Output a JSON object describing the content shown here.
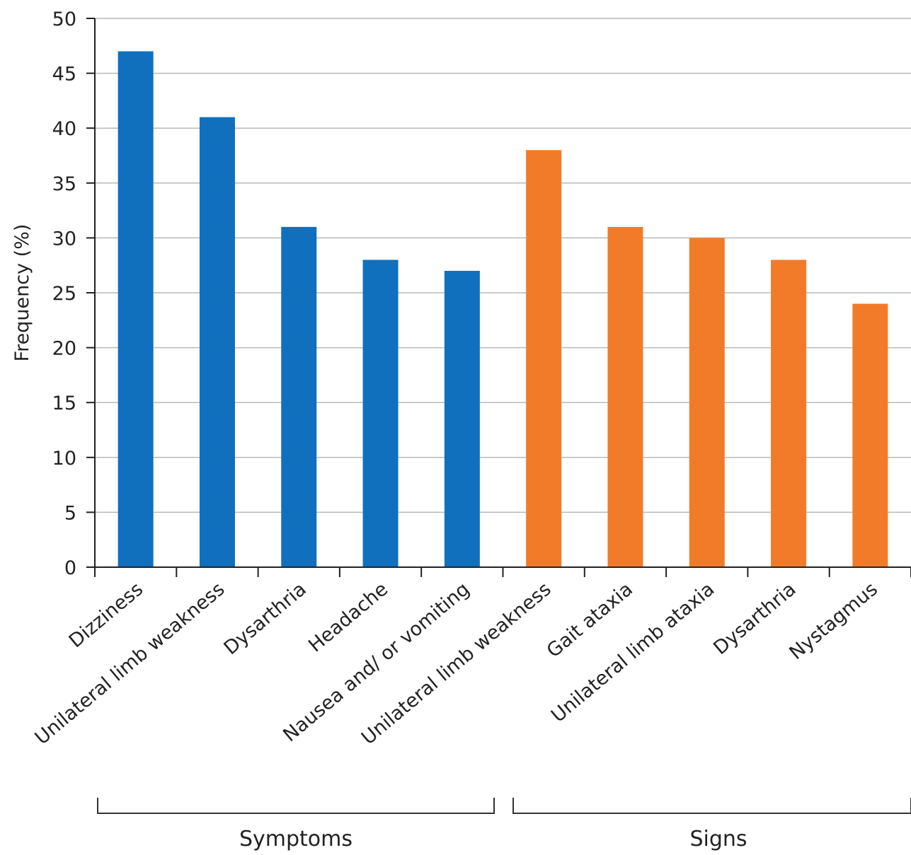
{
  "chart_data": {
    "type": "bar",
    "ylabel": "Frequency (%)",
    "ylim": [
      0,
      50
    ],
    "yticks": [
      0,
      5,
      10,
      15,
      20,
      25,
      30,
      35,
      40,
      45,
      50
    ],
    "grid": true,
    "bars": [
      {
        "category": "Dizziness",
        "value": 47,
        "group": "Symptoms"
      },
      {
        "category": "Unilateral limb weakness",
        "value": 41,
        "group": "Symptoms"
      },
      {
        "category": "Dysarthria",
        "value": 31,
        "group": "Symptoms"
      },
      {
        "category": "Headache",
        "value": 28,
        "group": "Symptoms"
      },
      {
        "category": "Nausea and/ or vomiting",
        "value": 27,
        "group": "Symptoms"
      },
      {
        "category": "Unilateral limb weakness",
        "value": 38,
        "group": "Signs"
      },
      {
        "category": "Gait ataxia",
        "value": 31,
        "group": "Signs"
      },
      {
        "category": "Unilateral limb ataxia",
        "value": 30,
        "group": "Signs"
      },
      {
        "category": "Dysarthria",
        "value": 28,
        "group": "Signs"
      },
      {
        "category": "Nystagmus",
        "value": 24,
        "group": "Signs"
      }
    ],
    "groups": [
      {
        "name": "Symptoms",
        "color": "#1070bd"
      },
      {
        "name": "Signs",
        "color": "#f27b2a"
      }
    ]
  }
}
